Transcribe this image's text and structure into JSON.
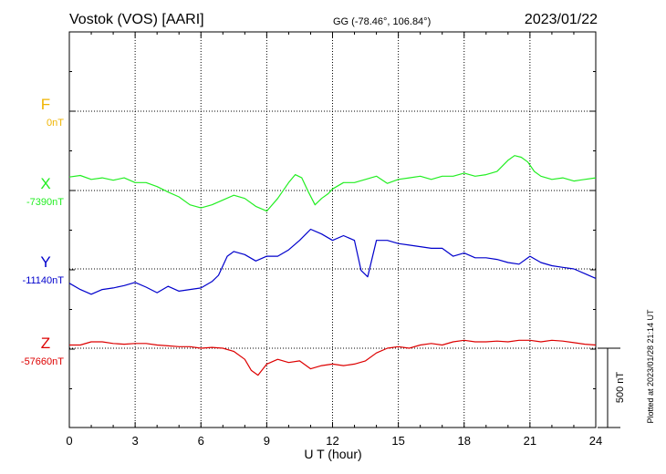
{
  "header": {
    "station": "Vostok (VOS)  [AARI]",
    "coords": "GG (-78.46°, 106.84°)",
    "date": "2023/01/22"
  },
  "plotted_note": "Plotted at 2023/01/28 21:14 UT",
  "colors": {
    "F": "#f0b400",
    "X": "#22ee22",
    "Y": "#0000cc",
    "Z": "#dd0000"
  },
  "chart_data": {
    "type": "line",
    "xlabel": "U T (hour)",
    "xlim": [
      0,
      24
    ],
    "xticks": [
      "0",
      "3",
      "6",
      "9",
      "12",
      "15",
      "18",
      "21",
      "24"
    ],
    "scale_bar_label": "500 nT",
    "series": [
      {
        "name": "F",
        "baseline_label": "0nT",
        "x": [],
        "y": []
      },
      {
        "name": "X",
        "baseline_label": "-7390nT",
        "x": [
          0,
          0.5,
          1,
          1.5,
          2,
          2.5,
          3,
          3.5,
          4,
          4.5,
          5,
          5.5,
          6,
          6.5,
          7,
          7.5,
          8,
          8.5,
          9,
          9.5,
          10,
          10.3,
          10.6,
          10.9,
          11.2,
          11.5,
          11.8,
          12,
          12.5,
          13,
          13.5,
          14,
          14.5,
          15,
          15.5,
          16,
          16.5,
          17,
          17.5,
          18,
          18.5,
          19,
          19.5,
          20,
          20.3,
          20.6,
          20.9,
          21.2,
          21.5,
          22,
          22.5,
          23,
          23.5,
          24
        ],
        "y": [
          -7305,
          -7295,
          -7320,
          -7310,
          -7325,
          -7310,
          -7340,
          -7340,
          -7365,
          -7400,
          -7430,
          -7480,
          -7500,
          -7480,
          -7450,
          -7420,
          -7440,
          -7490,
          -7520,
          -7440,
          -7340,
          -7290,
          -7310,
          -7400,
          -7480,
          -7440,
          -7410,
          -7380,
          -7340,
          -7340,
          -7320,
          -7300,
          -7345,
          -7320,
          -7310,
          -7300,
          -7320,
          -7300,
          -7300,
          -7280,
          -7300,
          -7290,
          -7270,
          -7200,
          -7170,
          -7180,
          -7210,
          -7270,
          -7300,
          -7320,
          -7310,
          -7330,
          -7320,
          -7310
        ]
      },
      {
        "name": "Y",
        "baseline_label": "-11140nT",
        "x": [
          0,
          0.5,
          1,
          1.5,
          2,
          2.5,
          3,
          3.5,
          4,
          4.5,
          5,
          5.5,
          6,
          6.5,
          6.8,
          7.2,
          7.5,
          8,
          8.5,
          9,
          9.5,
          10,
          10.5,
          11,
          11.5,
          12,
          12.5,
          13,
          13.3,
          13.6,
          14,
          14.5,
          15,
          15.5,
          16,
          16.5,
          17,
          17.5,
          18,
          18.5,
          19,
          19.5,
          20,
          20.5,
          21,
          21.5,
          22,
          22.5,
          23,
          23.5,
          24
        ],
        "y": [
          -11230,
          -11270,
          -11300,
          -11270,
          -11260,
          -11245,
          -11225,
          -11255,
          -11290,
          -11250,
          -11280,
          -11270,
          -11260,
          -11220,
          -11180,
          -11060,
          -11030,
          -11050,
          -11090,
          -11060,
          -11060,
          -11020,
          -10960,
          -10890,
          -10920,
          -10960,
          -10930,
          -10960,
          -11150,
          -11190,
          -10960,
          -10960,
          -10980,
          -10990,
          -11000,
          -11010,
          -11010,
          -11060,
          -11040,
          -11070,
          -11070,
          -11080,
          -11100,
          -11110,
          -11060,
          -11100,
          -11120,
          -11130,
          -11140,
          -11170,
          -11200
        ]
      },
      {
        "name": "Z",
        "baseline_label": "-57660nT",
        "x": [
          0,
          0.5,
          1,
          1.5,
          2,
          2.5,
          3,
          3.5,
          4,
          4.5,
          5,
          5.5,
          6,
          6.5,
          7,
          7.5,
          8,
          8.3,
          8.6,
          9,
          9.5,
          10,
          10.5,
          11,
          11.5,
          12,
          12.5,
          13,
          13.5,
          14,
          14.5,
          15,
          15.5,
          16,
          16.5,
          17,
          17.5,
          18,
          18.5,
          19,
          19.5,
          20,
          20.5,
          21,
          21.5,
          22,
          22.5,
          23,
          23.5,
          24
        ],
        "y": [
          -57640,
          -57640,
          -57620,
          -57620,
          -57630,
          -57635,
          -57630,
          -57630,
          -57640,
          -57645,
          -57650,
          -57650,
          -57660,
          -57655,
          -57660,
          -57680,
          -57730,
          -57800,
          -57830,
          -57760,
          -57730,
          -57750,
          -57740,
          -57790,
          -57770,
          -57760,
          -57770,
          -57760,
          -57740,
          -57690,
          -57660,
          -57650,
          -57660,
          -57640,
          -57630,
          -57640,
          -57620,
          -57610,
          -57620,
          -57620,
          -57615,
          -57620,
          -57610,
          -57610,
          -57620,
          -57610,
          -57615,
          -57625,
          -57635,
          -57640
        ]
      }
    ]
  }
}
